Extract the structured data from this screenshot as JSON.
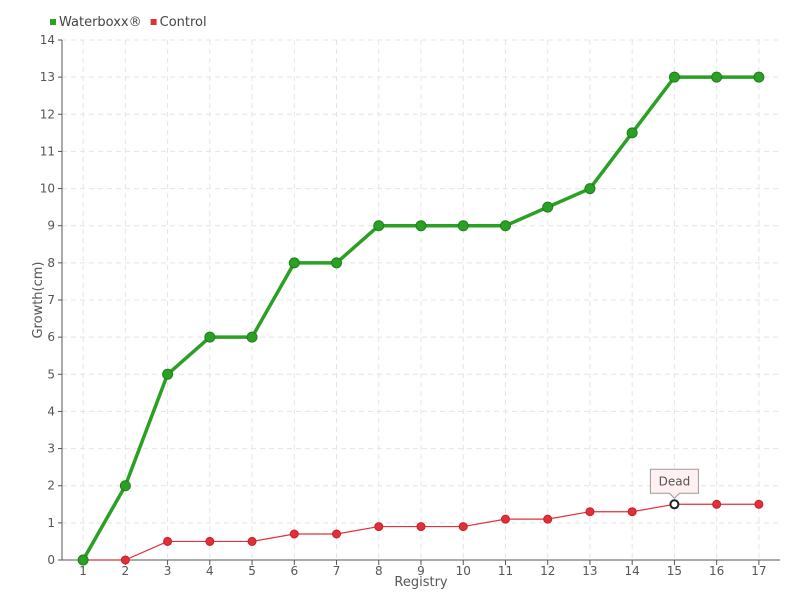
{
  "chart_data": {
    "type": "line",
    "xlabel": "Registry",
    "ylabel": "Growth(cm)",
    "x": [
      1,
      2,
      3,
      4,
      5,
      6,
      7,
      8,
      9,
      10,
      11,
      12,
      13,
      14,
      15,
      16,
      17
    ],
    "xlim": [
      0.5,
      17.5
    ],
    "ylim": [
      0,
      14
    ],
    "yticks": [
      0,
      1,
      2,
      3,
      4,
      5,
      6,
      7,
      8,
      9,
      10,
      11,
      12,
      13,
      14
    ],
    "grid": true,
    "legend_position": "top-left",
    "series": [
      {
        "name": "Waterboxx®",
        "color": "#2aa024",
        "values": [
          0,
          2,
          5,
          6,
          6,
          8,
          8,
          9,
          9,
          9,
          9,
          9.5,
          10,
          11.5,
          13,
          13,
          13
        ]
      },
      {
        "name": "Control",
        "color": "#e0303a",
        "values": [
          0,
          0,
          0.5,
          0.5,
          0.5,
          0.7,
          0.7,
          0.9,
          0.9,
          0.9,
          1.1,
          1.1,
          1.3,
          1.3,
          1.5,
          1.5,
          1.5
        ]
      }
    ],
    "annotations": [
      {
        "series": "Control",
        "x": 15,
        "y": 1.5,
        "text": "Dead"
      }
    ]
  }
}
